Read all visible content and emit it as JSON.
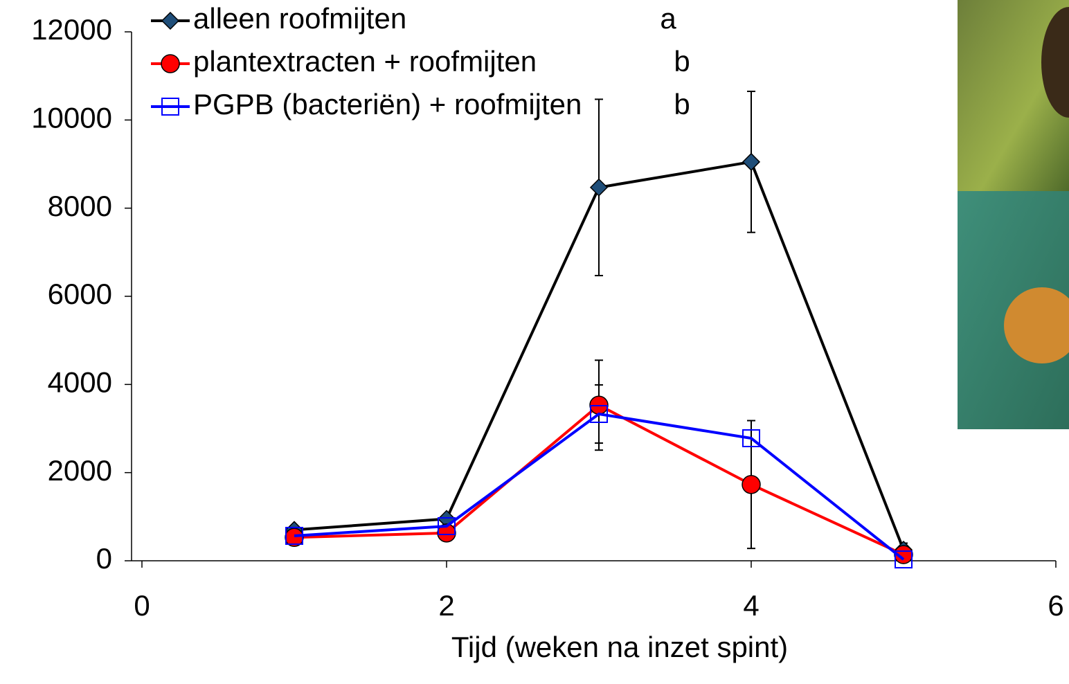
{
  "chart_data": {
    "type": "line",
    "x_label": "Tijd (weken na inzet spint)",
    "xlim": [
      0,
      6
    ],
    "xticks": [
      0,
      2,
      4,
      6
    ],
    "ylim": [
      0,
      12000
    ],
    "yticks": [
      0,
      2000,
      4000,
      6000,
      8000,
      10000,
      12000
    ],
    "x": [
      1,
      2,
      3,
      4,
      5
    ],
    "series": [
      {
        "name": "alleen roofmijten",
        "annotation": "a",
        "color": "#000000",
        "marker": "diamond",
        "marker_color": "#1f4e79",
        "values": [
          700,
          950,
          8470,
          9050,
          250
        ],
        "errors": [
          null,
          null,
          2000,
          1600,
          150
        ]
      },
      {
        "name": "plantextracten + roofmijten",
        "annotation": "b",
        "color": "#ff0000",
        "marker": "circle",
        "marker_color": "#ff0000",
        "values": [
          530,
          630,
          3530,
          1730,
          140
        ],
        "errors": [
          null,
          null,
          1020,
          1450,
          null
        ]
      },
      {
        "name": "PGPB (bacteriën) + roofmijten",
        "annotation": "b",
        "color": "#0000ff",
        "marker": "square",
        "marker_color": "#0000ff",
        "values": [
          565,
          785,
          3330,
          2780,
          30
        ],
        "errors": [
          null,
          null,
          660,
          null,
          null
        ]
      }
    ]
  }
}
